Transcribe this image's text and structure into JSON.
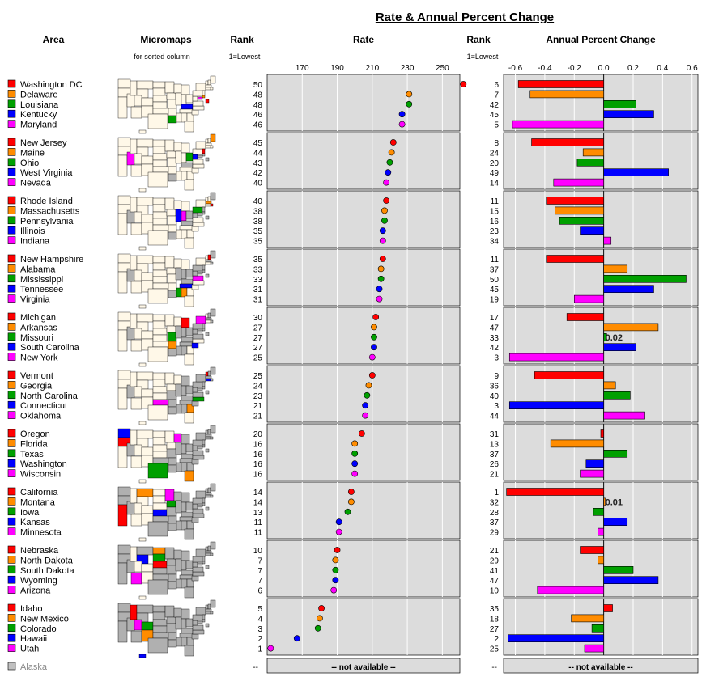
{
  "title": "Rate & Annual Percent Change",
  "headers": {
    "area": "Area",
    "micromaps": "Micromaps",
    "micromaps_sub": "for sorted column",
    "rank1": "Rank",
    "rank1_sub": "1=Lowest",
    "rate": "Rate",
    "rank2": "Rank",
    "rank2_sub": "1=Lowest",
    "apc": "Annual Percent Change"
  },
  "colors": {
    "series": [
      "#ff0000",
      "#ff8c00",
      "#00a000",
      "#0000ff",
      "#ff00ff"
    ],
    "panel_bg": "#dcdcdc",
    "map_gray": "#b0b0b0",
    "map_cream": "#fff8e8",
    "na_box": "#c0c0c0"
  },
  "missing": {
    "name": "Alaska",
    "rank1": "--",
    "rank2": "--",
    "rate_text": "-- not available --",
    "apc_text": "-- not available --"
  },
  "chart_data": [
    {
      "type": "scatter",
      "title": "Rate",
      "xlim": [
        150,
        260
      ],
      "ticks": [
        170,
        190,
        210,
        230,
        250
      ],
      "grid": true,
      "states": [
        "Washington DC",
        "Delaware",
        "Louisiana",
        "Kentucky",
        "Maryland",
        "New Jersey",
        "Maine",
        "Ohio",
        "West Virginia",
        "Nevada",
        "Rhode Island",
        "Massachusetts",
        "Pennsylvania",
        "Illinois",
        "Indiana",
        "New Hampshire",
        "Alabama",
        "Mississippi",
        "Tennessee",
        "Virginia",
        "Michigan",
        "Arkansas",
        "Missouri",
        "South Carolina",
        "New York",
        "Vermont",
        "Georgia",
        "North Carolina",
        "Connecticut",
        "Oklahoma",
        "Oregon",
        "Florida",
        "Texas",
        "Washington",
        "Wisconsin",
        "California",
        "Montana",
        "Iowa",
        "Kansas",
        "Minnesota",
        "Nebraska",
        "North Dakota",
        "South Dakota",
        "Wyoming",
        "Arizona",
        "Idaho",
        "New Mexico",
        "Colorado",
        "Hawaii",
        "Utah"
      ],
      "rank": [
        50,
        48,
        48,
        46,
        46,
        45,
        44,
        43,
        42,
        40,
        40,
        38,
        38,
        35,
        35,
        35,
        33,
        33,
        31,
        31,
        30,
        27,
        27,
        27,
        25,
        25,
        24,
        23,
        21,
        21,
        20,
        16,
        16,
        16,
        16,
        14,
        14,
        13,
        11,
        11,
        10,
        7,
        7,
        7,
        6,
        5,
        4,
        3,
        2,
        1
      ],
      "values": [
        262,
        231,
        231,
        227,
        227,
        222,
        221,
        220,
        219,
        218,
        218,
        217,
        217,
        216,
        216,
        216,
        215,
        215,
        214,
        214,
        212,
        211,
        211,
        211,
        210,
        210,
        208,
        207,
        206,
        206,
        204,
        200,
        200,
        200,
        200,
        198,
        198,
        196,
        191,
        191,
        190,
        189,
        189,
        189,
        188,
        181,
        180,
        179,
        167,
        152
      ]
    },
    {
      "type": "bar",
      "title": "Annual Percent Change",
      "xlim": [
        -0.68,
        0.64
      ],
      "ticks": [
        -0.6,
        -0.4,
        -0.2,
        0.0,
        0.2,
        0.4,
        0.6
      ],
      "tick_labels": [
        "-0.6",
        "-0.4",
        "-0.2",
        "0.0",
        "0.2",
        "0.4",
        "0.6"
      ],
      "grid": true,
      "rank": [
        6,
        7,
        42,
        45,
        5,
        8,
        24,
        20,
        49,
        14,
        11,
        15,
        16,
        23,
        34,
        11,
        37,
        50,
        45,
        19,
        17,
        47,
        33,
        42,
        3,
        9,
        36,
        40,
        3,
        44,
        31,
        13,
        37,
        26,
        21,
        1,
        32,
        28,
        37,
        29,
        21,
        29,
        41,
        47,
        10,
        35,
        18,
        27,
        2,
        25
      ],
      "values": [
        -0.58,
        -0.5,
        0.22,
        0.34,
        -0.62,
        -0.49,
        -0.14,
        -0.18,
        0.44,
        -0.34,
        -0.39,
        -0.33,
        -0.3,
        -0.16,
        0.05,
        -0.39,
        0.16,
        0.56,
        0.34,
        -0.2,
        -0.25,
        0.37,
        0.02,
        0.22,
        -0.64,
        -0.47,
        0.08,
        0.18,
        -0.64,
        0.28,
        -0.02,
        -0.36,
        0.16,
        -0.12,
        -0.16,
        -0.66,
        0.01,
        -0.07,
        0.16,
        -0.04,
        -0.16,
        -0.04,
        0.2,
        0.37,
        -0.45,
        0.06,
        -0.22,
        -0.08,
        -0.65,
        -0.13
      ],
      "annotations": [
        {
          "state": "Missouri",
          "text": "0.02"
        },
        {
          "state": "Montana",
          "text": "0.01"
        }
      ]
    }
  ]
}
